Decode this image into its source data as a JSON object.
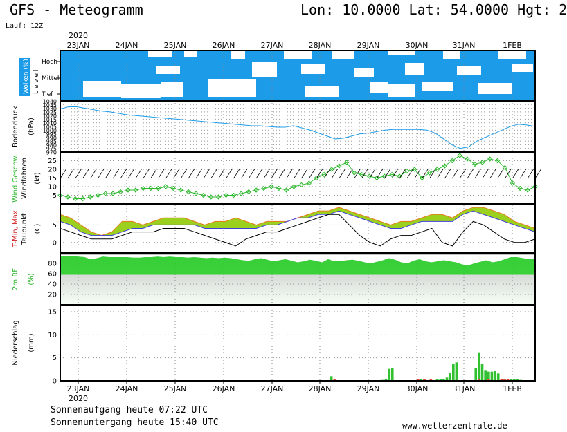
{
  "header": {
    "title": "GFS - Meteogramm",
    "location": "Lon: 10.0000 Lat: 54.0000 Hgt: 2",
    "run": "Lauf: 12Z"
  },
  "footer": {
    "sunrise": "Sonnenaufgang heute 07:22 UTC",
    "sunset": "Sonnenuntergang heute 15:40 UTC",
    "url": "www.wetterzentrale.de"
  },
  "colors": {
    "cloud": "#1c9ce8",
    "pressure": "#1c9ce8",
    "wind_speed": "#2db82d",
    "tmax_fill": "#9bd01e",
    "tmax_line": "#e87a1e",
    "tmin_line": "#4040e0",
    "dewpoint": "#000000",
    "rh_fill": "#20d020",
    "rain": "#30c030",
    "snow_red": "#e04040"
  },
  "chart_data": {
    "type": "meteogram",
    "x_labels": [
      "23JAN",
      "24JAN",
      "25JAN",
      "26JAN",
      "27JAN",
      "28JAN",
      "29JAN",
      "30JAN",
      "31JAN",
      "1FEB"
    ],
    "year": "2020",
    "panels": [
      {
        "id": "clouds",
        "ylabel": "Wolken (%)",
        "ylabel_side": "L e v e l",
        "levels": [
          "Hoch",
          "Mittel",
          "Tief"
        ]
      },
      {
        "id": "pressure",
        "ylabel": "Bodendruck",
        "yunit": "(hPa)",
        "yticks": [
          1040,
          1035,
          1030,
          1025,
          1020,
          1015,
          1010,
          1005,
          1000,
          995,
          990,
          985,
          980,
          975,
          970
        ],
        "ylim": [
          970,
          1040
        ],
        "values": [
          1029,
          1032,
          1032,
          1030,
          1028,
          1026,
          1025,
          1023,
          1021,
          1020,
          1019,
          1018,
          1017,
          1016,
          1015,
          1014,
          1013,
          1012,
          1011,
          1010,
          1009,
          1008,
          1007,
          1006,
          1006,
          1005,
          1004,
          1004,
          1006,
          1003,
          1000,
          996,
          992,
          988,
          989,
          992,
          995,
          996,
          998,
          1000,
          1001,
          1001,
          1001,
          1001,
          1000,
          996,
          988,
          980,
          975,
          977,
          985,
          990,
          995,
          1000,
          1005,
          1008,
          1007,
          1005
        ]
      },
      {
        "id": "wind",
        "ylabel": "Wind Geschw.",
        "ylabel2": "Windfahnen",
        "yunit": "(kt)",
        "yticks": [
          25,
          20,
          15,
          10,
          5
        ],
        "ylim": [
          0,
          30
        ],
        "values": [
          5,
          4,
          3,
          3,
          4,
          5,
          6,
          6,
          7,
          8,
          8,
          9,
          9,
          9,
          10,
          9,
          8,
          7,
          6,
          5,
          4,
          4,
          5,
          5,
          6,
          7,
          8,
          9,
          10,
          9,
          8,
          10,
          11,
          12,
          15,
          17,
          20,
          22,
          24,
          18,
          17,
          16,
          15,
          16,
          17,
          16,
          19,
          20,
          15,
          18,
          20,
          22,
          25,
          28,
          26,
          23,
          24,
          26,
          25,
          21,
          12,
          9,
          8,
          10
        ]
      },
      {
        "id": "temperature",
        "ylabel": "T-Min, Max",
        "ylabel2": "Taupunkt",
        "yunit": "(C)",
        "yticks": [
          5,
          0
        ],
        "ylim": [
          -3,
          11
        ],
        "tmax": [
          8,
          7,
          5,
          3,
          2,
          3,
          6,
          6,
          5,
          6,
          7,
          7,
          7,
          6,
          5,
          6,
          6,
          7,
          6,
          5,
          6,
          6,
          6,
          7,
          8,
          9,
          9,
          10,
          9,
          8,
          7,
          6,
          5,
          6,
          6,
          7,
          8,
          8,
          7,
          9,
          10,
          10,
          9,
          8,
          6,
          5,
          4
        ],
        "tmin": [
          6,
          5,
          3,
          2,
          2,
          2,
          3,
          4,
          4,
          5,
          5,
          5,
          5,
          5,
          4,
          4,
          4,
          4,
          4,
          4,
          5,
          5,
          6,
          7,
          7,
          8,
          8,
          9,
          8,
          7,
          6,
          5,
          4,
          4,
          5,
          6,
          6,
          6,
          6,
          8,
          9,
          8,
          7,
          6,
          5,
          4,
          3
        ],
        "dewpoint": [
          4,
          3,
          2,
          1,
          1,
          1,
          2,
          3,
          3,
          3,
          4,
          4,
          4,
          3,
          2,
          1,
          0,
          -1,
          1,
          2,
          3,
          3,
          4,
          5,
          6,
          7,
          8,
          8,
          5,
          2,
          0,
          -1,
          1,
          2,
          2,
          3,
          4,
          0,
          -1,
          3,
          6,
          5,
          3,
          1,
          0,
          0,
          1
        ]
      },
      {
        "id": "rh",
        "ylabel": "2m RF",
        "yunit": "(%)",
        "yticks": [
          80,
          60,
          40,
          20
        ],
        "ylim": [
          0,
          100
        ],
        "values": [
          93,
          94,
          94,
          93,
          92,
          88,
          90,
          93,
          92,
          92,
          92,
          92,
          91,
          91,
          92,
          92,
          93,
          92,
          93,
          92,
          92,
          91,
          92,
          91,
          90,
          91,
          90,
          91,
          90,
          88,
          86,
          85,
          88,
          90,
          87,
          84,
          86,
          88,
          85,
          82,
          84,
          87,
          85,
          82,
          88,
          84,
          84,
          86,
          87,
          85,
          82,
          80,
          83,
          86,
          90,
          87,
          82,
          80,
          85,
          88,
          84,
          82,
          84,
          86,
          84,
          82,
          78,
          76,
          80,
          83,
          86,
          82,
          84,
          88,
          92,
          92,
          90,
          88,
          90
        ]
      },
      {
        "id": "precip",
        "ylabel": "Niederschlag",
        "yunit": "(mm)",
        "yticks": [
          15,
          10,
          5,
          0
        ],
        "ylim": [
          0,
          16.5
        ],
        "rain": [
          0,
          0,
          0,
          0,
          0,
          0,
          0,
          0,
          0,
          0,
          0,
          0,
          0,
          0,
          0,
          0,
          0,
          0,
          0,
          0,
          0,
          0,
          0,
          0,
          0,
          0,
          0,
          0,
          0,
          0,
          0,
          0,
          0,
          0,
          0,
          0,
          0,
          0,
          0,
          0,
          0,
          0,
          0,
          0,
          0,
          0,
          0,
          0,
          0,
          0,
          0,
          0,
          0,
          0,
          0,
          0,
          0,
          0,
          0,
          0,
          0,
          0,
          0,
          0,
          0,
          0,
          0,
          0,
          0,
          0,
          0,
          0,
          0,
          0,
          0,
          0,
          0,
          0,
          0,
          0,
          0,
          0,
          0,
          0,
          1.0,
          0.3,
          0,
          0,
          0,
          0,
          0,
          0,
          0,
          0,
          0,
          0,
          0,
          0,
          0,
          0,
          0.2,
          0.3,
          2.6,
          2.7,
          0,
          0,
          0,
          0,
          0,
          0,
          0,
          0.4,
          0.3,
          0.3,
          0,
          0,
          0,
          0.3,
          0.3,
          0.4,
          0.7,
          1.7,
          3.6,
          4.0,
          0,
          0,
          0,
          0,
          0,
          2.8,
          6.2,
          3.6,
          2.2,
          2.0,
          2.0,
          2.1,
          1.6,
          0.3,
          0.3,
          0.2,
          0.3,
          0.4,
          0.4,
          0.2,
          0,
          0,
          0,
          0
        ],
        "snow": [
          0,
          0,
          0,
          0,
          0,
          0,
          0,
          0,
          0,
          0,
          0,
          0,
          0,
          0,
          0,
          0,
          0,
          0,
          0,
          0,
          0,
          0,
          0,
          0,
          0,
          0,
          0,
          0,
          0,
          0,
          0,
          0,
          0,
          0,
          0,
          0,
          0,
          0,
          0,
          0,
          0,
          0,
          0,
          0,
          0,
          0,
          0,
          0,
          0,
          0,
          0,
          0,
          0,
          0,
          0,
          0,
          0,
          0,
          0,
          0,
          0,
          0,
          0,
          0,
          0,
          0,
          0,
          0,
          0,
          0,
          0,
          0,
          0,
          0,
          0,
          0,
          0,
          0,
          0,
          0,
          0,
          0,
          0,
          0,
          0,
          0.3,
          0,
          0,
          0,
          0,
          0,
          0,
          0,
          0,
          0,
          0,
          0,
          0,
          0,
          0,
          0,
          0,
          0,
          0,
          0,
          0,
          0,
          0,
          0,
          0,
          0,
          0.3,
          0,
          0.3,
          0,
          0.3,
          0,
          0,
          0,
          0,
          0,
          0,
          0,
          0,
          0,
          0,
          0,
          0,
          0,
          0,
          0.3,
          0,
          0,
          0.3,
          0,
          0,
          0,
          0.3,
          0.3,
          0.3,
          0,
          0,
          0,
          0,
          0,
          0,
          0,
          0
        ]
      }
    ]
  }
}
